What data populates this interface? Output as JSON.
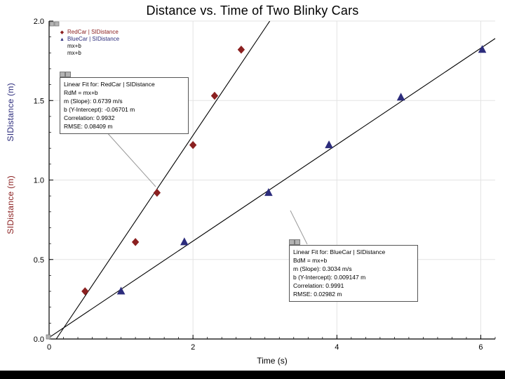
{
  "chart_data": {
    "type": "scatter",
    "title": "Distance vs. Time of Two Blinky Cars",
    "xlabel": "Time (s)",
    "ylabels": {
      "red": "SIDistance (m)",
      "blue": "SIDistance (m)"
    },
    "xlim": [
      0,
      6.2
    ],
    "ylim": [
      0,
      2.0
    ],
    "x_ticks": [
      0,
      2,
      4,
      6
    ],
    "x_tick_labels": [
      "0",
      "2",
      "4",
      "6"
    ],
    "y_ticks": [
      0,
      0.5,
      1.0,
      1.5,
      2.0
    ],
    "y_tick_labels": [
      "0.0",
      "0.5",
      "1.0",
      "1.5",
      "2.0"
    ],
    "grid": true,
    "legend_position": "top-left",
    "series": [
      {
        "name": "RedCar | SIDistance",
        "marker": "diamond",
        "color": "#8b2020",
        "points": [
          [
            0.5,
            0.3
          ],
          [
            1.2,
            0.61
          ],
          [
            1.5,
            0.92
          ],
          [
            2.0,
            1.22
          ],
          [
            2.3,
            1.53
          ],
          [
            2.67,
            1.82
          ]
        ],
        "fit": {
          "label": "mx+b",
          "slope": 0.6739,
          "intercept": -0.06701,
          "x_range": [
            0.0994,
            3.0669
          ]
        }
      },
      {
        "name": "BlueCar | SIDistance",
        "marker": "triangle",
        "color": "#2c2c7c",
        "points": [
          [
            1.0,
            0.3
          ],
          [
            1.88,
            0.61
          ],
          [
            3.05,
            0.92
          ],
          [
            3.89,
            1.22
          ],
          [
            4.89,
            1.52
          ],
          [
            6.02,
            1.82
          ]
        ],
        "fit": {
          "label": "mx+b",
          "slope": 0.3034,
          "intercept": 0.009147,
          "x_range": [
            0,
            6.2
          ]
        }
      }
    ]
  },
  "legend": {
    "items": [
      {
        "label": "RedCar | SIDistance",
        "marker": "diamond",
        "color": "#8b2020"
      },
      {
        "label": "BlueCar | SIDistance",
        "marker": "triangle",
        "color": "#2c2c7c"
      },
      {
        "label": "mx+b",
        "marker": "line",
        "color": "#000000"
      },
      {
        "label": "mx+b",
        "marker": "line",
        "color": "#000000"
      }
    ]
  },
  "annotations": {
    "red_fit": {
      "title": "Linear Fit for: RedCar | SIDistance",
      "equation": "RdM = mx+b",
      "slope": "m (Slope): 0.6739 m/s",
      "intercept": "b (Y-Intercept): -0.06701 m",
      "correlation": "Correlation: 0.9932",
      "rmse": "RMSE: 0.08409 m"
    },
    "blue_fit": {
      "title": "Linear Fit for: BlueCar | SIDistance",
      "equation": "BdM = mx+b",
      "slope": "m (Slope): 0.3034 m/s",
      "intercept": "b (Y-Intercept): 0.009147 m",
      "correlation": "Correlation: 0.9991",
      "rmse": "RMSE: 0.02982 m"
    }
  }
}
